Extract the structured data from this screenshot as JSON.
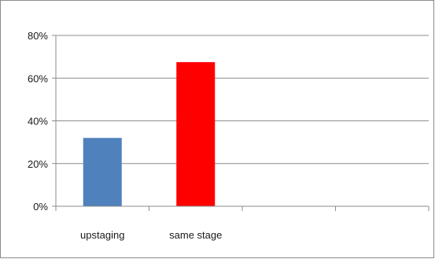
{
  "chart_data": {
    "type": "bar",
    "categories": [
      "upstaging",
      "same stage",
      "",
      ""
    ],
    "values": [
      32,
      67.5,
      null,
      null
    ],
    "colors": [
      "#4f81bd",
      "#ff0000"
    ],
    "y_ticks": [
      "0%",
      "20%",
      "40%",
      "60%",
      "80%"
    ],
    "ylim": [
      0,
      80
    ],
    "y_unit": "%",
    "grid": true,
    "legend": "none",
    "title": "",
    "xlabel": "",
    "ylabel": ""
  }
}
